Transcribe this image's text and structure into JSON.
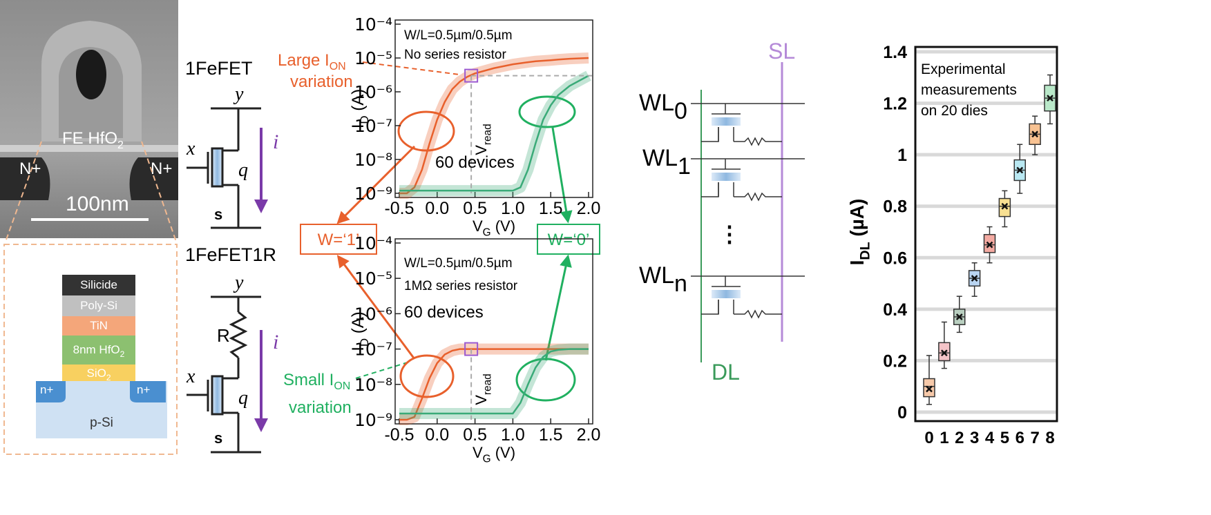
{
  "tem": {
    "fe": {
      "text": "FE HfO",
      "sub": "2"
    },
    "n_left": "N+",
    "n_right": "N+",
    "scale": "100nm"
  },
  "stack": {
    "layers": [
      {
        "text": "Silicide"
      },
      {
        "text": "Poly-Si"
      },
      {
        "text": "TiN"
      },
      {
        "text": "8nm HfO",
        "sub": "2"
      },
      {
        "text": "SiO",
        "sub": "2"
      }
    ],
    "n_left": "n+",
    "n_right": "n+",
    "substrate": "p-Si"
  },
  "circuits": [
    {
      "title": "1FeFET",
      "y": "y",
      "x": "x",
      "q": "q",
      "i": "i",
      "s": "s"
    },
    {
      "title": "1FeFET1R",
      "y": "y",
      "x": "x",
      "q": "q",
      "i": "i",
      "s": "s",
      "r": "R"
    }
  ],
  "callouts": {
    "w1": "W=‘1’",
    "w0": "W=‘0’",
    "large": {
      "text": "Large I",
      "sub": "ON"
    },
    "large_2": "variation",
    "small": {
      "text": "Small I",
      "sub": "ON"
    },
    "small_2": "variation"
  },
  "array": {
    "wl": [
      {
        "text": "WL",
        "sub": "0"
      },
      {
        "text": "WL",
        "sub": "1"
      },
      {
        "text": "WL",
        "sub": "n"
      }
    ],
    "dots": "⋮",
    "dl": "DL",
    "sl": "SL"
  },
  "chart_data": [
    {
      "type": "line",
      "log_y": true,
      "x": [
        -0.5,
        -0.4,
        -0.3,
        -0.2,
        -0.1,
        0,
        0.1,
        0.2,
        0.3,
        0.4,
        0.5,
        0.75,
        1,
        1.1,
        1.2,
        1.3,
        1.4,
        1.5,
        1.6,
        1.75,
        2
      ],
      "series": [
        {
          "color": "#e8602c",
          "values": [
            1e-09,
            1e-09,
            1.5e-09,
            5e-09,
            3e-08,
            1.5e-07,
            5e-07,
            1.2e-06,
            2e-06,
            2.8e-06,
            3.5e-06,
            5e-06,
            6.5e-06,
            7e-06,
            7.5e-06,
            8e-06,
            8.3e-06,
            8.6e-06,
            9e-06,
            9.5e-06,
            1e-05
          ]
        },
        {
          "color": "#3aaa78",
          "values": [
            1.2e-09,
            1.2e-09,
            1.2e-09,
            1.2e-09,
            1.2e-09,
            1.2e-09,
            1.2e-09,
            1.2e-09,
            1.2e-09,
            1.2e-09,
            1.2e-09,
            1.2e-09,
            1.2e-09,
            1.5e-09,
            5e-09,
            3e-08,
            1.5e-07,
            4e-07,
            8e-07,
            1.5e-06,
            3e-06
          ]
        }
      ],
      "xlim": [
        -0.5,
        2
      ],
      "xticks": [
        -0.5,
        {
          "value": 0,
          "label": "0.0"
        },
        0.5,
        {
          "value": 1,
          "label": "1.0"
        },
        1.5,
        {
          "value": 2,
          "label": "2.0"
        }
      ],
      "ylim": [
        1e-09,
        0.0001
      ],
      "yticks": [
        {
          "value": 0.0001,
          "label": "10⁻⁴"
        },
        {
          "value": 1e-05,
          "label": "10⁻⁵"
        },
        {
          "value": 1e-06,
          "label": "10⁻⁶"
        },
        {
          "value": 1e-07,
          "label": "10⁻⁷"
        },
        {
          "value": 1e-08,
          "label": "10⁻⁸"
        },
        {
          "value": 1e-09,
          "label": "10⁻⁹"
        }
      ],
      "xlabel": {
        "text": "V",
        "sub": "G",
        "after": " (V)"
      },
      "ylabel": {
        "text": "I",
        "sub": "D",
        "after": " (A)"
      },
      "annotations": [
        "W/L=0.5µm/0.5µm",
        "No series resistor",
        "60 devices"
      ],
      "vread": {
        "text": "V",
        "sub": "read"
      },
      "marker": {
        "x": 0.45,
        "y": 3e-06
      },
      "marker_hline": true
    },
    {
      "type": "line",
      "log_y": true,
      "x": [
        -0.5,
        -0.4,
        -0.3,
        -0.2,
        -0.1,
        0,
        0.1,
        0.2,
        0.3,
        0.4,
        0.5,
        0.75,
        1,
        1.1,
        1.2,
        1.3,
        1.4,
        1.5,
        1.6,
        1.75,
        2
      ],
      "series": [
        {
          "color": "#e8602c",
          "values": [
            1e-09,
            1e-09,
            1.2e-09,
            4e-09,
            1.5e-08,
            4e-08,
            7e-08,
            9e-08,
            1e-07,
            1e-07,
            1e-07,
            1e-07,
            1e-07,
            1e-07,
            1e-07,
            1e-07,
            1e-07,
            1e-07,
            1e-07,
            1e-07,
            1e-07
          ]
        },
        {
          "color": "#3aaa78",
          "values": [
            1.5e-09,
            1.5e-09,
            1.5e-09,
            1.5e-09,
            1.5e-09,
            1.5e-09,
            1.5e-09,
            1.5e-09,
            1.5e-09,
            1.5e-09,
            1.5e-09,
            1.5e-09,
            1.5e-09,
            3e-09,
            1e-08,
            3e-08,
            6e-08,
            8.5e-08,
            9.5e-08,
            1e-07,
            1e-07
          ]
        }
      ],
      "xlim": [
        -0.5,
        2
      ],
      "xticks": [
        -0.5,
        {
          "value": 0,
          "label": "0.0"
        },
        0.5,
        {
          "value": 1,
          "label": "1.0"
        },
        1.5,
        {
          "value": 2,
          "label": "2.0"
        }
      ],
      "ylim": [
        1e-09,
        0.0001
      ],
      "yticks": [
        {
          "value": 0.0001,
          "label": "10⁻⁴"
        },
        {
          "value": 1e-05,
          "label": "10⁻⁵"
        },
        {
          "value": 1e-06,
          "label": "10⁻⁶"
        },
        {
          "value": 1e-07,
          "label": "10⁻⁷"
        },
        {
          "value": 1e-08,
          "label": "10⁻⁸"
        },
        {
          "value": 1e-09,
          "label": "10⁻⁹"
        }
      ],
      "xlabel": {
        "text": "V",
        "sub": "G",
        "after": " (V)"
      },
      "ylabel": {
        "text": "I",
        "sub": "D",
        "after": " (A)"
      },
      "annotations": [
        "W/L=0.5µm/0.5µm",
        "1MΩ series resistor",
        "60 devices"
      ],
      "vread": {
        "text": "V",
        "sub": "read"
      },
      "marker": {
        "x": 0.45,
        "y": 1e-07
      },
      "marker_hline": false
    },
    {
      "type": "box",
      "grid": true,
      "categories": [
        "0",
        "1",
        "2",
        "3",
        "4",
        "5",
        "6",
        "7",
        "8"
      ],
      "boxes": [
        {
          "low": 0.03,
          "q1": 0.06,
          "median": 0.1,
          "q3": 0.13,
          "high": 0.22,
          "mean": 0.09,
          "color": "#f7c9a9"
        },
        {
          "low": 0.17,
          "q1": 0.2,
          "median": 0.23,
          "q3": 0.27,
          "high": 0.35,
          "mean": 0.23,
          "color": "#f4c4c8"
        },
        {
          "low": 0.31,
          "q1": 0.34,
          "median": 0.37,
          "q3": 0.4,
          "high": 0.45,
          "mean": 0.37,
          "color": "#b9cfc0"
        },
        {
          "low": 0.45,
          "q1": 0.49,
          "median": 0.52,
          "q3": 0.55,
          "high": 0.58,
          "mean": 0.52,
          "color": "#b9d5f2"
        },
        {
          "low": 0.58,
          "q1": 0.62,
          "median": 0.65,
          "q3": 0.69,
          "high": 0.72,
          "mean": 0.65,
          "color": "#f4aaa2"
        },
        {
          "low": 0.72,
          "q1": 0.76,
          "median": 0.8,
          "q3": 0.83,
          "high": 0.86,
          "mean": 0.8,
          "color": "#f8e092"
        },
        {
          "low": 0.85,
          "q1": 0.9,
          "median": 0.94,
          "q3": 0.98,
          "high": 1.04,
          "mean": 0.94,
          "color": "#b9e8f2"
        },
        {
          "low": 1,
          "q1": 1.04,
          "median": 1.08,
          "q3": 1.12,
          "high": 1.15,
          "mean": 1.08,
          "color": "#f8c292"
        },
        {
          "low": 1.12,
          "q1": 1.17,
          "median": 1.22,
          "q3": 1.27,
          "high": 1.31,
          "mean": 1.22,
          "color": "#b9e8c9"
        }
      ],
      "ylim": [
        0,
        1.4
      ],
      "yticks": [
        0,
        0.2,
        0.4,
        0.6,
        0.8,
        1,
        1.2,
        1.4
      ],
      "ylabel": {
        "text": "I",
        "sub": "DL",
        "after": " (µA)"
      },
      "annotation": [
        "Experimental",
        "measurements",
        "on 20 dies"
      ]
    }
  ]
}
